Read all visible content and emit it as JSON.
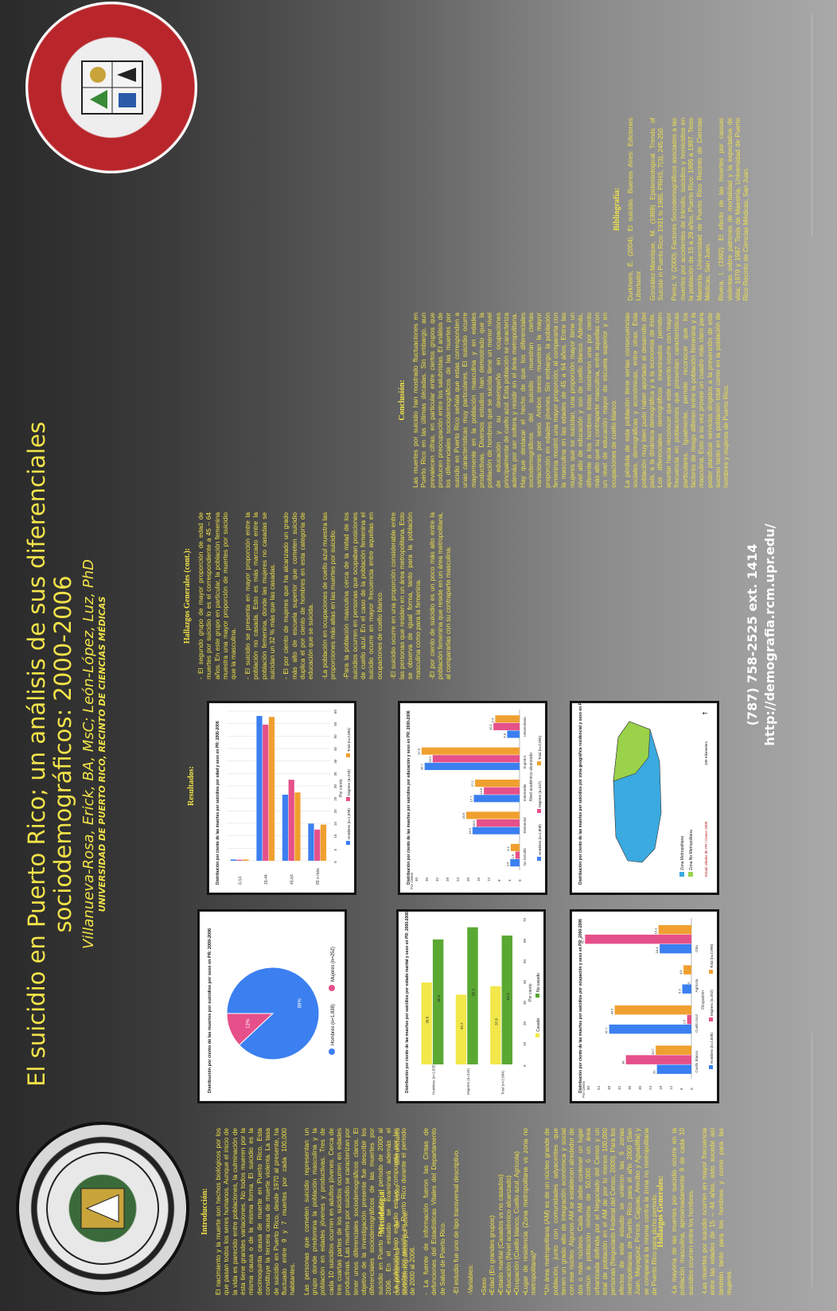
{
  "title": {
    "line1": "El suicidio en Puerto Rico; un análisis de sus diferenciales",
    "line2": "sociodemográficos: 2000-2006",
    "authors": "Villanueva-Rosa, Erick, BA, MsC; León-López, Luz, PhD",
    "university": "UNIVERSIDAD DE PUERTO RICO, RECINTO DE CIENCIAS MÉDICAS"
  },
  "logos": {
    "left": "RECINTO DE CIENCIAS MÉDICAS · UNIVERSIDAD DE PUERTO RICO",
    "right": "ESCUELA GRADUADA DE SALUD PÚBLICA · FACULTAD DE CIENCIAS BIOSOCIALES Y · RCM-UPR"
  },
  "intro": {
    "heading": "Introducción:",
    "text": "El nacimiento y la muerte son hechos biológicos por los que pasan todos los seres humanos. Aunque el inicio de la vida es parecido entre poblaciones, la culminación de ésta tiene grandes variaciones. No todos mueren por la misma causa o de la misma forma. El suicidio es la decimoquinta causa de muerte en Puerto Rico. Esta constituye la tercera causa de muerte violenta. La tasa de suicidio en Puerto Rico, desde 1970 al presente, ha fluctuado entre 9 y 7 muertes por cada 100,000 habitantes.",
    "text2": "Las personas que cometen suicidio representan un grupo donde predomina la población masculina y la población en edades jóvenes y productivas. Tres de cada 10 suicidios ocurren en adultos jóvenes. Cerca de tres cuartas partes de los suicidios ocurren en edades productivas. Las muertes por suicidio se caracterizan por tener unos diferenciales sociodemográficos claros. El objetivo de la investigación presente fue describir los diferenciales sociodemográficos de las muertes por suicidio en Puerto Rico durante el periodo de 2000 al 2006. En el estudio se examinará además el comportamiento de estos diferenciales sociodemográficos por sexo."
  },
  "method": {
    "heading": "Metodología:",
    "p1": "-La población bajo estudio estuvo compuesta por las muertes por suicidio en Puerto Rico durante el periodo de 2000 al 2006.",
    "p2": "- La fuente de información fueron las Cintas de defunciones del Estadísticas Vitales del Departamento de Salud de Puerto Rico.",
    "p3": "-El estudio fue uno de tipo transversal descriptivo.",
    "p4": "-Variables:",
    "vars": [
      "•Sexo",
      "•Edad (En grandes grupos)",
      "•Estado marital (Casados vs no casados)",
      "•Educación (Nivel académico alcanzado)",
      "•Ocupación (Cuello blanco, Cuello azul, Agrícola)",
      "•Lugar de residencia (Zona metropolitana vs zona no metropolitana)*"
    ],
    "note": "*Un área metropolitana (AM) es de un núcleo grande de población, junto con comunidades adyacentes que tienen un grado alto de integración económica y social con ese núcleo. Algunos AM se establecen alrededor de dos o más núcleos. Cada AM debe contener un lugar común a población mínima de 50,000 ó un área urbanizada definida por el Negociado del Censo y un total de población en el AM de por lo menos 100,000 personas (Negociado Federal del Censo, 2000). Para los efectos de este estudio se unieron las 6 zonas metropolitanas de Puerto Rico para el año 2000 (San Juan, Mayagüez, Ponce, Caguas, Arecibo y Aguadilla) y se comparará la misma contra la zona no metropolitana de Puerto Rico para dicho periodo."
  },
  "hallazgos1": {
    "heading": "Hallazgos Generales:",
    "p1": "-La mayoría de las muertes por suicidio ocurre en la población masculina, aproximadamente 9 de cada 10 suicidios ocurren entre los hombres.",
    "p2": "-Las muertes por suicidio ocurren en mayor frecuencia entre las edades de 15 – 44 años, esto sucede así también tanto para los hombres y como para las mujeres."
  },
  "results": {
    "heading": "Resultados:"
  },
  "hallazgos2": {
    "heading": "Hallazgos Generales (cont.):",
    "items": [
      "- El segundo grupo de mayor proporción de edad de muertes por suicidio lo es el correspondiente a 45 – 64 años. En este grupo en particular, la población femenina muestra una mayor proporción de muertes por suicidio que la masculina.",
      "- El suicidio se presenta en mayor proporción entre la población no casada. Esto es más marcado entre la población femenina, donde las mujeres no casadas se suicidan un 32 % más que las casadas.",
      "- El por ciento de mujeres que ha alcanzado un grado más alto de escuela superior que cometen suicidio duplica el por ciento de hombres en esta categoría de educación que se suicida.",
      "-La población en ocupaciones de cuello azul muestra las proporciones más altas en las muertes por suicidio.",
      "-Para la población masculina cerca de la mitad de los suicidios ocurren en personas que ocupaban posiciones de cuello azul. En el caso de la población femenina el suicidio ocurre en mayor frecuencia entre aquellas en ocupaciones de cuello blanco.",
      "-El suicidio ocurre en una proporción considerable entre las personas que residen en un área metropolitana. Esto se observa de igual forma, tanto para la población masculina como para la femenina.",
      "-El por ciento de suicidio es un poco más alto entre la población femenina que reside en un área metropolitana, al compararlas con su contraparte masculina."
    ]
  },
  "conclusion": {
    "heading": "Conclusión:",
    "p1": "Las muertes por suicidio han mostrado fluctuaciones en Puerto Rico en las últimas décadas. Sin embargo, aun prevalecen cifras, en particular entre ciertos grupos que producen preocupación entre los salubristas. El análisis de los diferenciales sociodemográficos de las muertes por suicidio en Puerto Rico señala que estas corresponden a unas características muy particulares. El suicidio ocurre mayormente en la población masculina y en edades productivas. Diversos estudios han demostrado que la población de hombres que se suicida tiene un menor nivel de educación y su desempeño en ocupaciones principalmente de cuello azul. Esta población se caracteriza además por ser soltera y residir en el área metropolitana. Hay que destacar el hecho de que los diferenciales sociodemográficos del suicidio muestran ciertas variaciones por sexo. Ambos sexos muestran la mayor proporción en edades jóvenes. Sin embargo, la población femenina mostró una mayor proporción, al compararla con la masculina en las edades de 45 a 64 años. Entre las mujeres que se suicidan, una proporción mayor tiene un nivel alto de educación y son de cuello blanco. Además, diferente a los hombres éstas mostraron una por ciento más alto que su contraparte masculina, entre aquellas con un nivel de educación mayor de escuela superior y en ocupaciones de cuello blanco.",
    "p2": "La pérdida de esta población tiene serias consecuencias sociales, demográficas y económicas, entre otras. Esta población muy bien pudo haber aportado al desarrollo del país, a la dinámica demográfica y a la economía de éste. Los diferenciales demográficos examinados permiten apuntar hacia reconocer que este evento ocurre con mayor frecuencia en poblaciones que presentan características particulares. Igualmente, permite reconocer que los factores de riesgo difieren entre la población femenina y la masculina. Esto a su vez provee un cuadro más claro para poder planificar servicios dirigidos a la prevención de este suceso tanto en la población total como en la población de hombres y mujeres de Puerto Rico."
  },
  "biblio": {
    "heading": "Bibliografía:",
    "refs": [
      "Durkheim, É. (2004). El suicidio. Buenos Aires: Ediciones Libertador.",
      "González-Manrique, M. (1988) Epidemiological Trends of Suicide in Puerto Rico: 1931 to 1985. PRHS, 7(3), 245-250.",
      "Perez, V. (2000). Factores Sociodemográficos asociados a las muertes por accidentes de tránsito, suicidios y homicidios en la población de 15 a 29 años, Puerto Rico: 1995 a 1997. Tesis Maestría, Universidad de Puerto Rico Recinto de Ciencias Médicas, San Juan.",
      "Rivera, I. (1992). El efecto de las muertes por causas violentas sobre patrones de mortalidad y la expectativa de vida; 1979 y 1987. Tesis de Maestría, Universidad de Puerto Rico Recinto de Ciencias Médicas, San Juan."
    ]
  },
  "contact": {
    "phone": "(787) 758-2525 ext. 1414",
    "url": "http://demografia.rcm.upr.edu/"
  },
  "colors": {
    "hombres": "#3b7ff0",
    "mujeres": "#e6508a",
    "total": "#f0a030",
    "casado": "#f2e84a",
    "nocasado": "#5aa832"
  },
  "chart_data": [
    {
      "type": "pie",
      "title": "Distribución por ciento de las muertes por suicidios por sexo en PR: 2000-2006",
      "categories": [
        "Hombres (n=1,838)",
        "Mujeres (n=252)"
      ],
      "values": [
        88,
        12
      ],
      "labels": [
        "88%",
        "12%"
      ]
    },
    {
      "type": "bar",
      "title": "Distribución por ciento de las muertes por suicidios por edad y sexo en PR: 2000-2006",
      "categories": [
        "0-14",
        "15-44",
        "45-64",
        "65 o más"
      ],
      "series": [
        {
          "name": "Hombres (n=1,838)",
          "values": [
            0.5,
            58.1,
            26.5,
            14.9
          ]
        },
        {
          "name": "Mujeres (n=249)",
          "values": [
            0.4,
            54.6,
            32.5,
            12.5
          ]
        },
        {
          "name": "Total (n=2,084)",
          "values": [
            0.5,
            57.7,
            27.4,
            14.5
          ]
        }
      ],
      "ylabel": "Edad (Grandes grupos)",
      "xlabel": "Por ciento",
      "xlim": [
        0,
        60
      ]
    },
    {
      "type": "bar",
      "title": "Distribución por ciento de las muertes por suicidios por estado marital y sexo en PR: 2000-2006",
      "categories": [
        "Hombres (n=1,835)",
        "Mujeres (n=249)",
        "Total (n=2,084)"
      ],
      "series": [
        {
          "name": "Casado",
          "values": [
            39.6,
            33.7,
            37.8
          ]
        },
        {
          "name": "No casado",
          "values": [
            60.4,
            66.3,
            62.3
          ]
        }
      ],
      "ylabel": "Sexo",
      "xlabel": "Por ciento",
      "xlim": [
        0,
        70
      ]
    },
    {
      "type": "bar",
      "title": "Distribución por ciento de las muertes por suicidios por educación y sexo en PR: 2000-2006",
      "categories": [
        "No Estudió",
        "Elemental",
        "Intermedia",
        "Superior",
        "Universitaria"
      ],
      "series": [
        {
          "name": "Hombres (n=1,808)",
          "values": [
            3.6,
            18.2,
            17.7,
            36.7,
            4.8
          ]
        },
        {
          "name": "Mujeres (n=247)",
          "values": [
            1.6,
            16.6,
            13.8,
            33.6,
            10.1
          ]
        },
        {
          "name": "Total (n=2,055)",
          "values": [
            3.4,
            20.6,
            17.2,
            37.9,
            9.4
          ]
        }
      ],
      "xlabel": "Nivel académico alcanzado",
      "ylabel": "Por Ciento",
      "ylim": [
        0,
        40
      ]
    },
    {
      "type": "bar",
      "title": "Distribución por ciento de las muertes por suicidios por ocupación y sexo en PR: 2000-2006",
      "categories": [
        "Cuello Blanco",
        "Cuello Azul",
        "Agrícola",
        "Otra"
      ],
      "series": [
        {
          "name": "Hombres (n=1,838)",
          "values": [
            20.0,
            47.7,
            5.3,
            18.4
          ]
        },
        {
          "name": "Mujeres (n=252)",
          "values": [
            38.0,
            2.5,
            0.0,
            61.7
          ]
        },
        {
          "name": "Total (n=2,090)",
          "values": [
            20.7,
            44.5,
            4.6,
            19.1
          ]
        }
      ],
      "xlabel": "Ocupación",
      "ylabel": "Por Ciento",
      "ylim": [
        0,
        60
      ]
    }
  ],
  "map": {
    "title": "Distribución por ciento de las muertes por suicidios por zona geográfica residencial y sexo en PR: 2000-2006",
    "legend": [
      "Zona Metropolitana",
      "Zona No Metropolitana"
    ],
    "source": "Estad. Vitales de PR / Censo 2000",
    "scale": "100 Kilometers"
  }
}
